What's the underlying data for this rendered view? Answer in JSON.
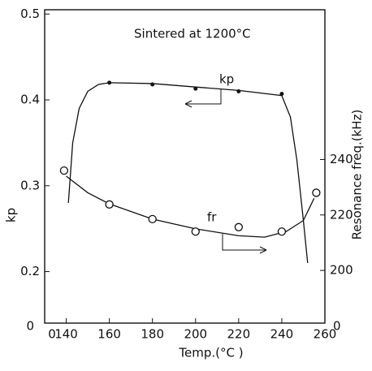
{
  "chart_data": {
    "type": "line",
    "annotation": "Sintered at 1200°C",
    "xlabel": "Temp.(°C )",
    "ylabel": "kp",
    "y2label": "Resonance freq.(kHz)",
    "xlim": [
      130,
      260
    ],
    "xticks": [
      140,
      160,
      180,
      200,
      220,
      240,
      260
    ],
    "ylim": [
      0.14,
      0.505
    ],
    "yticks": [
      0.2,
      0.3,
      0.4,
      0.5
    ],
    "y2lim": [
      181,
      294
    ],
    "y2ticks": [
      200,
      220,
      240
    ],
    "break_labels": {
      "x": "0",
      "y": "0",
      "y2": "0"
    },
    "series": [
      {
        "name": "kp",
        "color": "#111",
        "marker": "dot",
        "x": [
          160,
          180,
          200,
          220,
          240
        ],
        "values": [
          0.42,
          0.418,
          0.413,
          0.41,
          0.407
        ],
        "curve": {
          "x": [
            141,
            143,
            146,
            150,
            155,
            160,
            180,
            200,
            220,
            240,
            244,
            247,
            250,
            252
          ],
          "values": [
            0.28,
            0.35,
            0.39,
            0.41,
            0.418,
            0.42,
            0.419,
            0.415,
            0.411,
            0.405,
            0.38,
            0.33,
            0.26,
            0.21
          ]
        }
      },
      {
        "name": "fr",
        "color": "#111",
        "marker": "circle",
        "axis": "y2",
        "x": [
          139,
          160,
          180,
          200,
          220,
          240,
          256
        ],
        "values": [
          236,
          223.8,
          218.5,
          214,
          215.6,
          214,
          228
        ],
        "curve": {
          "x": [
            140,
            150,
            160,
            180,
            200,
            220,
            232,
            242,
            250,
            255
          ],
          "values": [
            234,
            228,
            224,
            218.5,
            215,
            212.5,
            212,
            214,
            218,
            226
          ]
        }
      }
    ]
  }
}
